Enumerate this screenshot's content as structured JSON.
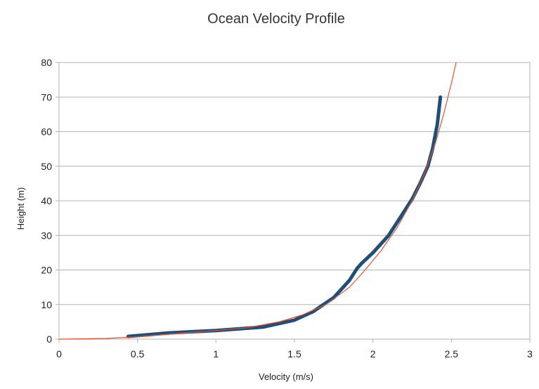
{
  "chart_data": {
    "type": "line",
    "title": "Ocean Velocity Profile",
    "xlabel": "Velocity (m/s)",
    "ylabel": "Height (m)",
    "xlim": [
      0,
      3
    ],
    "ylim": [
      0,
      80
    ],
    "x_ticks": [
      "0",
      "0.5",
      "1",
      "1.5",
      "2",
      "2.5",
      "3"
    ],
    "y_ticks": [
      "0",
      "10",
      "20",
      "30",
      "40",
      "50",
      "60",
      "70",
      "80"
    ],
    "grid": "horizontal",
    "legend": "none",
    "series": [
      {
        "style": "thick",
        "color": "#1f4e79",
        "x": [
          0.44,
          0.7,
          1.0,
          1.3,
          1.5,
          1.62,
          1.75,
          1.85,
          1.9,
          1.93,
          2.0,
          2.1,
          2.2,
          2.25,
          2.3,
          2.35,
          2.38,
          2.41,
          2.43
        ],
        "y": [
          0.8,
          1.8,
          2.5,
          3.5,
          5.5,
          8,
          12,
          17,
          20.5,
          22,
          25,
          30,
          37,
          40.5,
          45,
          50,
          55,
          62,
          70
        ]
      },
      {
        "style": "thin",
        "color": "#e8502a",
        "x": [
          0.0,
          0.3,
          0.5,
          0.8,
          1.0,
          1.2,
          1.4,
          1.55,
          1.7,
          1.85,
          1.95,
          2.05,
          2.15,
          2.25,
          2.33,
          2.4,
          2.45,
          2.5,
          2.53
        ],
        "y": [
          0.0,
          0.2,
          0.7,
          1.8,
          2.5,
          3.3,
          5.0,
          7.0,
          10.0,
          15.0,
          20.0,
          25.5,
          32.0,
          40.0,
          48.0,
          57.0,
          65.0,
          74.0,
          80.0
        ]
      }
    ]
  }
}
